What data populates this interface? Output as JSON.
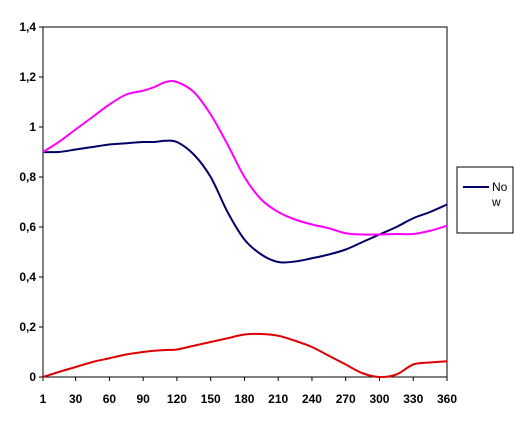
{
  "chart_data": {
    "type": "line",
    "title": "",
    "xlabel": "",
    "ylabel": "",
    "x_ticks": [
      "1",
      "30",
      "60",
      "90",
      "120",
      "150",
      "180",
      "210",
      "240",
      "270",
      "300",
      "330",
      "360"
    ],
    "x_tick_values": [
      1,
      30,
      60,
      90,
      120,
      150,
      180,
      210,
      240,
      270,
      300,
      330,
      360
    ],
    "y_ticks": [
      "0",
      "0,2",
      "0,4",
      "0,6",
      "0,8",
      "1",
      "1,2",
      "1,4"
    ],
    "y_tick_values": [
      0,
      0.2,
      0.4,
      0.6,
      0.8,
      1.0,
      1.2,
      1.4
    ],
    "xlim": [
      1,
      360
    ],
    "ylim": [
      0,
      1.4
    ],
    "grid": false,
    "legend_position": "right",
    "x": [
      1,
      15,
      30,
      45,
      60,
      75,
      90,
      100,
      110,
      120,
      135,
      150,
      165,
      180,
      195,
      210,
      225,
      240,
      255,
      270,
      285,
      300,
      315,
      330,
      345,
      360
    ],
    "series": [
      {
        "name": "Now",
        "color": "#000066",
        "values": [
          0.9,
          0.9,
          0.91,
          0.92,
          0.93,
          0.935,
          0.94,
          0.94,
          0.945,
          0.94,
          0.89,
          0.8,
          0.66,
          0.55,
          0.49,
          0.46,
          0.462,
          0.475,
          0.49,
          0.51,
          0.54,
          0.57,
          0.6,
          0.635,
          0.66,
          0.69
        ]
      },
      {
        "name": "",
        "color": "#ff00ff",
        "values": [
          0.9,
          0.94,
          0.99,
          1.04,
          1.09,
          1.13,
          1.145,
          1.16,
          1.18,
          1.18,
          1.14,
          1.05,
          0.93,
          0.8,
          0.71,
          0.66,
          0.63,
          0.61,
          0.595,
          0.575,
          0.57,
          0.57,
          0.572,
          0.572,
          0.585,
          0.605
        ]
      },
      {
        "name": "",
        "color": "#dd0000",
        "values": [
          0.0,
          0.02,
          0.04,
          0.06,
          0.075,
          0.09,
          0.1,
          0.105,
          0.108,
          0.11,
          0.125,
          0.14,
          0.155,
          0.17,
          0.172,
          0.165,
          0.145,
          0.12,
          0.085,
          0.05,
          0.015,
          0.0,
          0.01,
          0.05,
          0.058,
          0.063
        ]
      }
    ]
  },
  "legend": {
    "items": [
      {
        "label_line1": "No",
        "label_line2": "w",
        "color": "#000066"
      }
    ]
  },
  "colors": {
    "axis": "#000000",
    "plot_border": "#000000",
    "background": "#ffffff"
  }
}
